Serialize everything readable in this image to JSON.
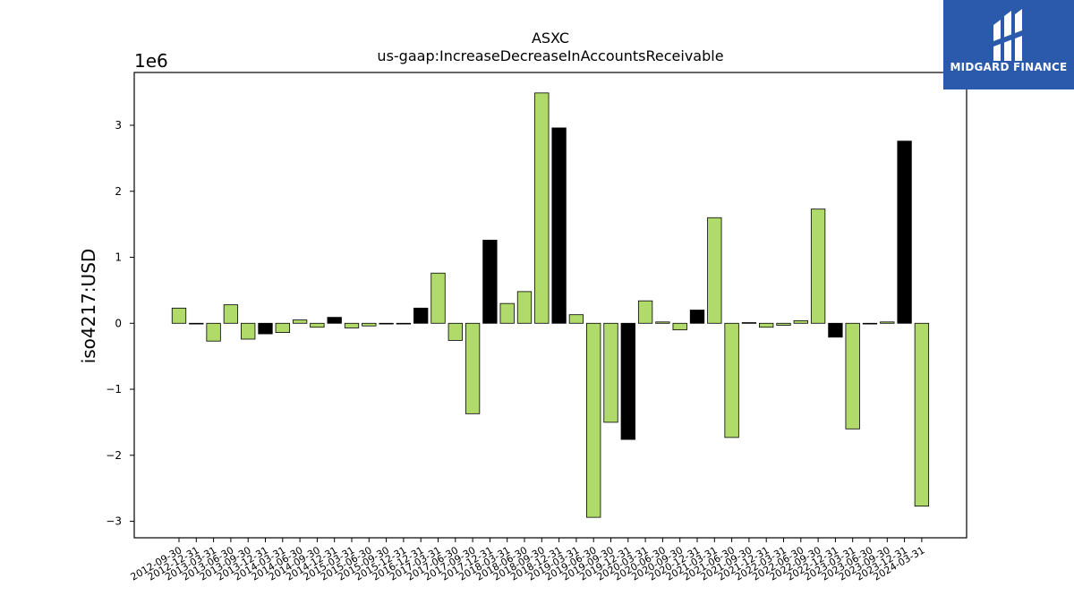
{
  "logo": {
    "text": "MIDGARD FINANCE",
    "icon": "midgard-logo-mark"
  },
  "colors": {
    "positive": "#b0da6a",
    "highlight": "#000000",
    "frame": "#000000",
    "logo_bg": "#2b5aad"
  },
  "chart_data": {
    "type": "bar",
    "title": "ASXC",
    "subtitle": "us-gaap:IncreaseDecreaseInAccountsReceivable",
    "ylabel": "iso4217:USD",
    "y_multiplier_label": "1e6",
    "ylim": [
      -3.25,
      3.8
    ],
    "yticks": [
      -3,
      -2,
      -1,
      0,
      1,
      2,
      3
    ],
    "grid": false,
    "categories": [
      "2012-09-30",
      "2012-12-31",
      "2013-03-31",
      "2013-06-30",
      "2013-09-30",
      "2013-12-31",
      "2014-03-31",
      "2014-06-30",
      "2014-09-30",
      "2014-12-31",
      "2015-03-31",
      "2015-06-30",
      "2015-09-30",
      "2015-12-31",
      "2016-12-31",
      "2017-03-31",
      "2017-06-30",
      "2017-09-30",
      "2017-12-31",
      "2018-03-31",
      "2018-06-30",
      "2018-09-30",
      "2018-12-31",
      "2019-03-31",
      "2019-06-30",
      "2019-09-30",
      "2019-12-31",
      "2020-03-31",
      "2020-06-30",
      "2020-09-30",
      "2020-12-31",
      "2021-03-31",
      "2021-06-30",
      "2021-09-30",
      "2021-12-31",
      "2022-03-31",
      "2022-06-30",
      "2022-09-30",
      "2022-12-31",
      "2023-03-31",
      "2023-06-30",
      "2023-09-30",
      "2023-12-31",
      "2024-03-31"
    ],
    "values": [
      0.23,
      -0.01,
      -0.27,
      0.28,
      -0.24,
      -0.16,
      -0.14,
      0.05,
      -0.06,
      0.09,
      -0.07,
      -0.04,
      -0.01,
      -0.01,
      0.23,
      0.76,
      -0.26,
      -1.37,
      1.26,
      0.3,
      0.48,
      3.49,
      2.96,
      0.13,
      -2.94,
      -1.5,
      -1.76,
      0.34,
      0.02,
      -0.1,
      0.2,
      1.6,
      -1.73,
      0.01,
      -0.06,
      -0.03,
      0.04,
      1.73,
      -0.21,
      -1.6,
      -0.01,
      0.02,
      2.76,
      -2.77
    ],
    "highlighted": [
      false,
      false,
      false,
      false,
      false,
      true,
      false,
      false,
      false,
      true,
      false,
      false,
      false,
      false,
      true,
      false,
      false,
      false,
      true,
      false,
      false,
      false,
      true,
      false,
      false,
      false,
      true,
      false,
      false,
      false,
      true,
      false,
      false,
      false,
      false,
      false,
      false,
      false,
      true,
      false,
      false,
      false,
      true,
      false
    ]
  }
}
